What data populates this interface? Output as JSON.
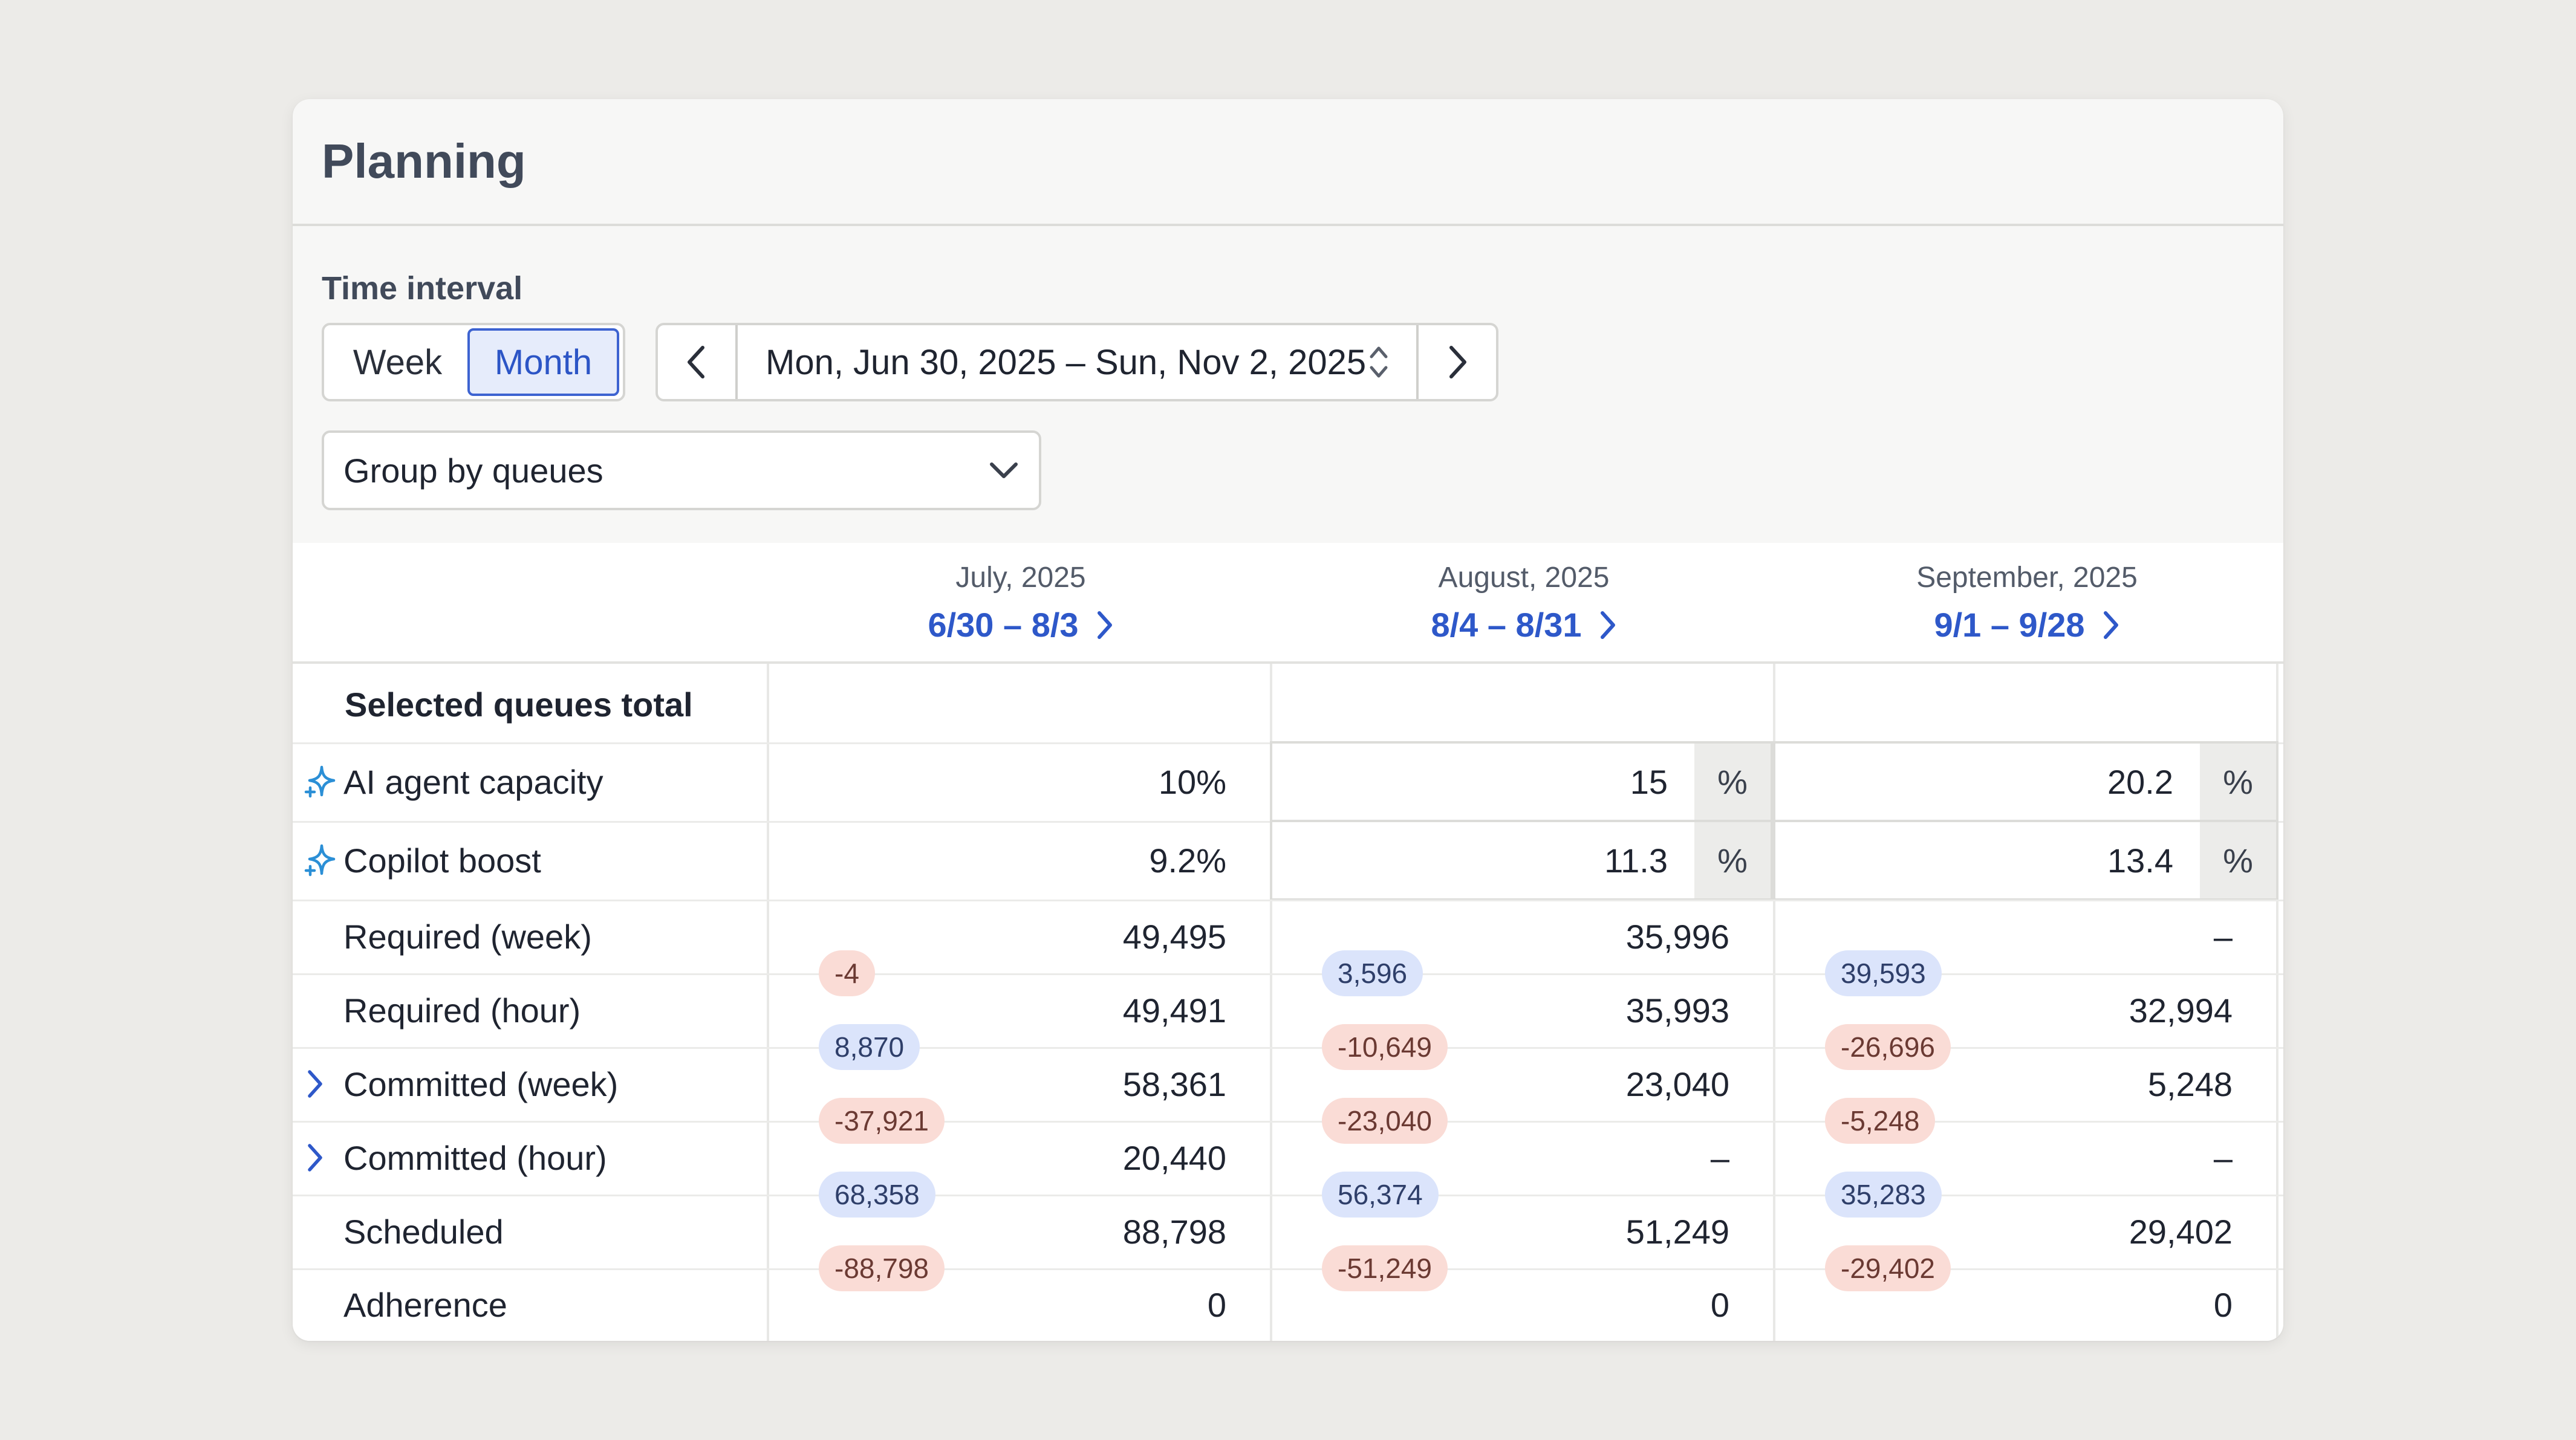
{
  "header": {
    "title": "Planning"
  },
  "time_interval": {
    "label": "Time interval",
    "segments": [
      "Week",
      "Month"
    ],
    "selected": "Month",
    "date_range": "Mon, Jun 30, 2025 – Sun, Nov 2, 2025"
  },
  "group_by": {
    "value": "Group by queues"
  },
  "columns": [
    {
      "month": "July, 2025",
      "range": "6/30 – 8/3"
    },
    {
      "month": "August, 2025",
      "range": "8/4 – 8/31"
    },
    {
      "month": "September, 2025",
      "range": "9/1 – 9/28"
    }
  ],
  "section": {
    "title": "Selected queues total"
  },
  "rows": {
    "ai_agent": {
      "label": "AI agent capacity",
      "jul": "10%",
      "aug": "15",
      "sep": "20.2",
      "unit": "%"
    },
    "copilot": {
      "label": "Copilot boost",
      "jul": "9.2%",
      "aug": "11.3",
      "sep": "13.4",
      "unit": "%"
    },
    "req_week": {
      "label": "Required (week)",
      "jul": "49,495",
      "aug": "35,996",
      "sep": "–"
    },
    "req_hour": {
      "label": "Required (hour)",
      "jul": "49,491",
      "aug": "35,993",
      "sep": "32,994"
    },
    "com_week": {
      "label": "Committed (week)",
      "jul": "58,361",
      "aug": "23,040",
      "sep": "5,248"
    },
    "com_hour": {
      "label": "Committed (hour)",
      "jul": "20,440",
      "aug": "–",
      "sep": "–"
    },
    "scheduled": {
      "label": "Scheduled",
      "jul": "88,798",
      "aug": "51,249",
      "sep": "29,402"
    },
    "adherence": {
      "label": "Adherence",
      "jul": "0",
      "aug": "0",
      "sep": "0"
    }
  },
  "pills": {
    "p1": {
      "jul": "-4",
      "aug": "3,596",
      "sep": "39,593"
    },
    "p2": {
      "jul": "8,870",
      "aug": "-10,649",
      "sep": "-26,696"
    },
    "p3": {
      "jul": "-37,921",
      "aug": "-23,040",
      "sep": "-5,248"
    },
    "p4": {
      "jul": "68,358",
      "aug": "56,374",
      "sep": "35,283"
    },
    "p5": {
      "jul": "-88,798",
      "aug": "-51,249",
      "sep": "-29,402"
    }
  },
  "colors": {
    "accent": "#3d63d1",
    "link": "#2e58c9",
    "negative_pill": "#fadcd6",
    "positive_pill": "#dbe4fb",
    "ai_icon": "#2b8fd6"
  },
  "icons": {
    "ai": "sparkle-icon",
    "expand": "chevron-right-icon",
    "prev": "chevron-left-icon",
    "next": "chevron-right-icon",
    "sort": "up-down-chevron-icon",
    "dropdown": "chevron-down-icon"
  }
}
